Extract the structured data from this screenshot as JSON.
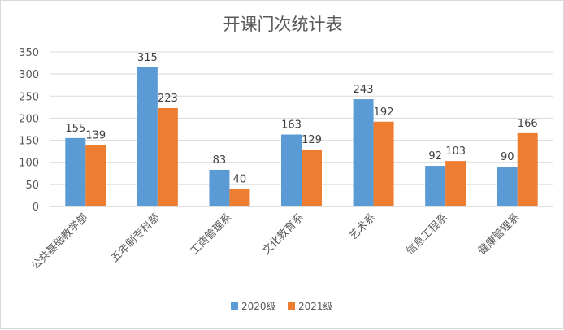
{
  "chart_data": {
    "type": "bar",
    "title": "开课门次统计表",
    "categories": [
      "公共基础教学部",
      "五年制专科部",
      "工商管理系",
      "文化教育系",
      "艺术系",
      "信息工程系",
      "健康管理系"
    ],
    "series": [
      {
        "name": "2020级",
        "color": "#5b9bd5",
        "values": [
          155,
          315,
          83,
          163,
          243,
          92,
          90
        ]
      },
      {
        "name": "2021级",
        "color": "#ed7d31",
        "values": [
          139,
          223,
          40,
          129,
          192,
          103,
          166
        ]
      }
    ],
    "ylim": [
      0,
      350
    ],
    "yticks": [
      0,
      50,
      100,
      150,
      200,
      250,
      300,
      350
    ],
    "xlabel": "",
    "ylabel": "",
    "grid": true,
    "legend": "bottom"
  }
}
